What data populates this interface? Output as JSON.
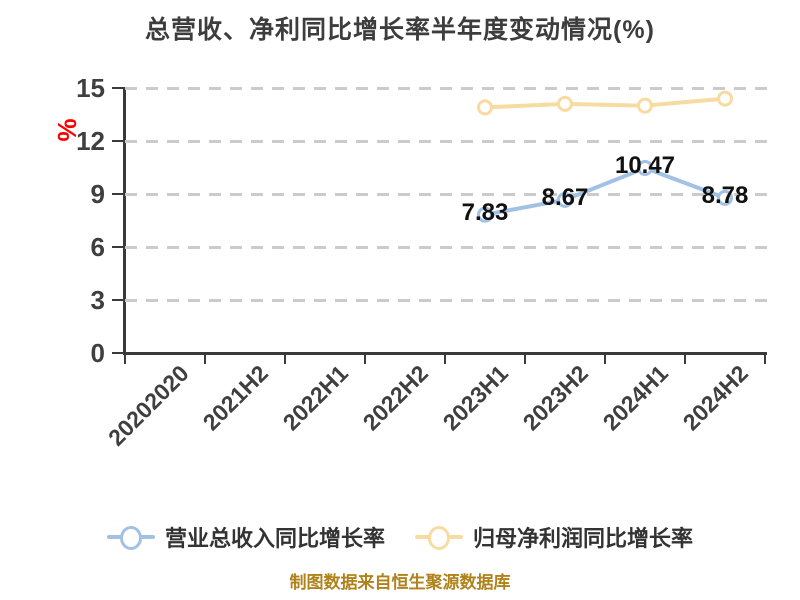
{
  "footer": "制图数据来自恒生聚源数据库",
  "footer_color": "#b0821b",
  "chart_data": {
    "type": "line",
    "title": "总营收、净利同比增长率半年度变动情况(%)",
    "ylabel": "%",
    "ylabel_color": "#ff0000",
    "xlabel": "",
    "categories": [
      "20202020",
      "2021H2",
      "2022H1",
      "2022H2",
      "2023H1",
      "2023H2",
      "2024H1",
      "2024H2"
    ],
    "y_ticks": [
      0,
      3,
      6,
      9,
      12,
      15
    ],
    "ylim": [
      0,
      15
    ],
    "grid": "horizontal-dashed",
    "grid_color": "#cbcbcb",
    "axis_color": "#3a3a3a",
    "legend_position": "bottom",
    "series": [
      {
        "name": "营业总收入同比增长率",
        "color": "#a2c1e5",
        "values": [
          null,
          null,
          null,
          null,
          7.83,
          8.67,
          10.47,
          8.78
        ],
        "labels": [
          null,
          null,
          null,
          null,
          "7.83",
          "8.67",
          "10.47",
          "8.78"
        ]
      },
      {
        "name": "归母净利润同比增长率",
        "color": "#f7dca2",
        "values": [
          null,
          null,
          null,
          null,
          13.9,
          14.1,
          14.0,
          14.4
        ],
        "labels": null
      }
    ]
  }
}
